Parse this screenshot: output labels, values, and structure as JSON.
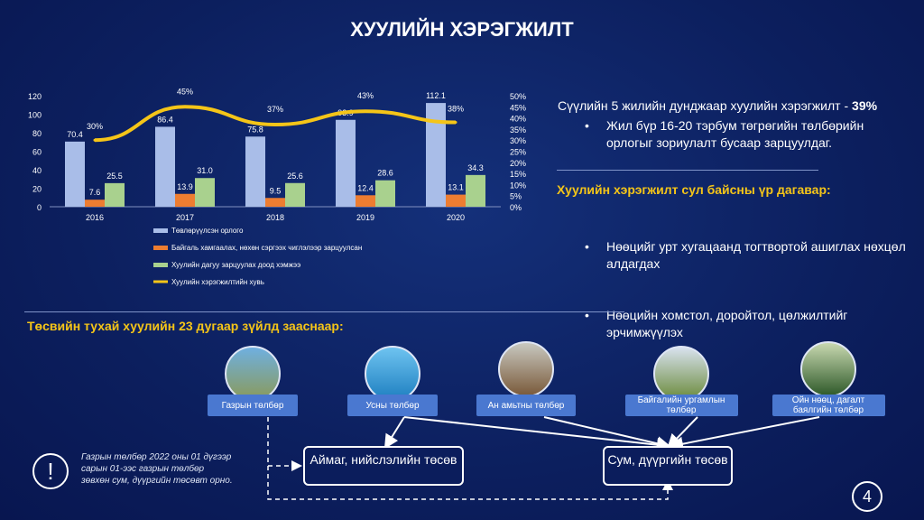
{
  "title": "ХУУЛИЙН ХЭРЭГЖИЛТ",
  "chart_data": {
    "type": "bar",
    "categories": [
      "2016",
      "2017",
      "2018",
      "2019",
      "2020"
    ],
    "ylim": [
      0,
      120
    ],
    "y2lim": [
      0,
      50
    ],
    "yticks": [
      "0",
      "20",
      "40",
      "60",
      "80",
      "100",
      "120"
    ],
    "y2ticks": [
      "0%",
      "5%",
      "10%",
      "15%",
      "20%",
      "25%",
      "30%",
      "35%",
      "40%",
      "45%",
      "50%"
    ],
    "series": [
      {
        "name": "Төвлөрүүлсэн орлого",
        "type": "bar",
        "color": "#a9bde8",
        "values": [
          70.4,
          86.4,
          75.8,
          93.9,
          112.1
        ],
        "labels": [
          "70.4",
          "86.4",
          "75.8",
          "93.9",
          "112.1"
        ]
      },
      {
        "name": "Байгаль хамгаалах, нөхөн сэргээх чиглэлээр зарцуулсан",
        "type": "bar",
        "color": "#ed7d31",
        "values": [
          7.6,
          13.9,
          9.5,
          12.4,
          13.1
        ],
        "labels": [
          "7.6",
          "13.9",
          "9.5",
          "12.4",
          "13.1"
        ]
      },
      {
        "name": "Хуулийн дагуу  зарцуулах доод хэмжээ",
        "type": "bar",
        "color": "#a9d18e",
        "values": [
          25.5,
          31.0,
          25.6,
          28.6,
          34.3
        ],
        "labels": [
          "25.5",
          "31.0",
          "25.6",
          "28.6",
          "34.3"
        ]
      },
      {
        "name": "Хуулийн хэрэгжилтийн хувь",
        "type": "line",
        "axis": "right",
        "color": "#f5c518",
        "values": [
          30,
          45,
          37,
          43,
          38
        ],
        "labels": [
          "30%",
          "45%",
          "37%",
          "43%",
          "38%"
        ]
      }
    ],
    "legend": "bottom"
  },
  "right": {
    "summary": "Сүүлийн 5 жилийн дунджаар хуулийн  хэрэгжилт - ",
    "summary_value": "39%",
    "bullet1": "Жил бүр 16-20 тэрбум төгрөгийн төлбөрийн орлогыг зориулалт бусаар зарцуулдаг.",
    "heading": "Хуулийн хэрэгжилт сул байсны үр дагавар:",
    "bullet2": "Нөөцийг урт хугацаанд тогтвортой ашиглах нөхцөл алдагдах",
    "bullet3": "Нөөцийн хомстол, доройтол, цөлжилтийг эрчимжүүлэх"
  },
  "bottom": {
    "heading": "Төсвийн тухай хуулийн 23 дугаар зүйлд зааснаар:",
    "fees": [
      "Газрын төлбөр",
      "Усны төлбөр",
      "Ан амьтны төлбөр",
      "Байгалийн ургамлын төлбөр",
      "Ойн нөөц, дагалт баялгийн төлбөр"
    ],
    "dest1": "Аймаг, нийслэлийн төсөв",
    "dest2": "Сум, дүүргийн төсөв",
    "note": "Газрын төлбөр 2022 оны 01 дүгээр сарын 01-ээс газрын төлбөр зөвхөн сум, дүүргийн төсөвт орно.",
    "warn_glyph": "!"
  },
  "page_number": "4"
}
